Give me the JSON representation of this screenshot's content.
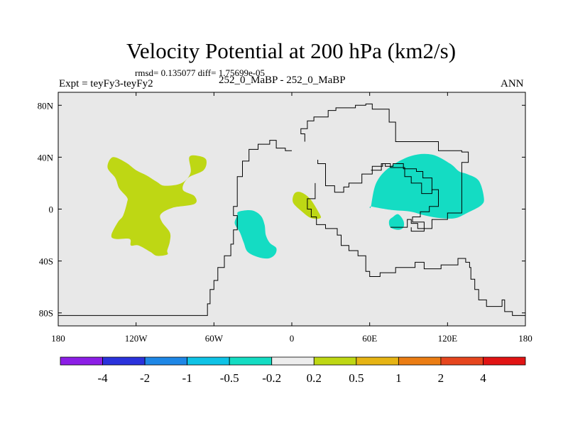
{
  "chart_data": {
    "type": "heatmap",
    "title": "Velocity Potential at 200 hPa (km2/s)",
    "subtitle_stats": "rmsd= 0.135077  diff= 1.75699e-05",
    "left_label": "Expt = teyFy3-teyFy2",
    "center_label": "252_0_MaBP - 252_0_MaBP",
    "right_label": "ANN",
    "x": {
      "range": [
        -180,
        180
      ],
      "tick_values": [
        -180,
        -120,
        -60,
        0,
        60,
        120,
        180
      ],
      "tick_labels": [
        "180",
        "120W",
        "60W",
        "0",
        "60E",
        "120E",
        "180"
      ]
    },
    "y": {
      "range": [
        -90,
        90
      ],
      "tick_values": [
        80,
        40,
        0,
        -40,
        -80
      ],
      "tick_labels": [
        "80N",
        "40N",
        "0",
        "40S",
        "80S"
      ]
    },
    "colorbar": {
      "labels": [
        "-4",
        "-2",
        "-1",
        "-0.5",
        "-0.2",
        "0.2",
        "0.5",
        "1",
        "2",
        "4"
      ],
      "colors": [
        "#8c1ee6",
        "#2a32dc",
        "#1e87e6",
        "#0fc3e6",
        "#14dcc3",
        "#ededed",
        "#bed714",
        "#e6b414",
        "#eb7d14",
        "#e6461e",
        "#e11414"
      ]
    },
    "background_color": "#e8e8e8",
    "regions": [
      {
        "name": "positive-region-pacific",
        "class": "0.2 to 0.5",
        "color": "#bed714",
        "outline": [
          [
            -138,
            40
          ],
          [
            -128,
            36
          ],
          [
            -120,
            30
          ],
          [
            -112,
            26
          ],
          [
            -104,
            21
          ],
          [
            -98,
            18
          ],
          [
            -85,
            20
          ],
          [
            -78,
            28
          ],
          [
            -79,
            40
          ],
          [
            -72,
            41
          ],
          [
            -66,
            38
          ],
          [
            -68,
            30
          ],
          [
            -80,
            24
          ],
          [
            -84,
            15
          ],
          [
            -75,
            10
          ],
          [
            -75,
            4
          ],
          [
            -92,
            1
          ],
          [
            -101,
            -4
          ],
          [
            -100,
            -10
          ],
          [
            -94,
            -18
          ],
          [
            -94,
            -25
          ],
          [
            -96,
            -32
          ],
          [
            -96,
            -35
          ],
          [
            -104,
            -36
          ],
          [
            -109,
            -33
          ],
          [
            -118,
            -28
          ],
          [
            -124,
            -28
          ],
          [
            -125,
            -23
          ],
          [
            -136,
            -23
          ],
          [
            -139,
            -20
          ],
          [
            -134,
            -10
          ],
          [
            -130,
            -5
          ],
          [
            -127,
            5
          ],
          [
            -127,
            9
          ],
          [
            -133,
            16
          ],
          [
            -136,
            24
          ],
          [
            -142,
            32
          ]
        ]
      },
      {
        "name": "positive-region-africa",
        "class": "0.2 to 0.5",
        "color": "#bed714",
        "outline": [
          [
            2,
            12
          ],
          [
            7,
            13
          ],
          [
            14,
            8
          ],
          [
            21,
            -3
          ],
          [
            22,
            -7
          ],
          [
            15,
            -7
          ],
          [
            8,
            -2
          ],
          [
            1,
            5
          ]
        ]
      },
      {
        "name": "negative-region-south-america",
        "class": "-0.5 to -0.2",
        "color": "#14dcc3",
        "outline": [
          [
            -41,
            -2
          ],
          [
            -31,
            -1
          ],
          [
            -24,
            -5
          ],
          [
            -21,
            -12
          ],
          [
            -20,
            -20
          ],
          [
            -17,
            -26
          ],
          [
            -12,
            -30
          ],
          [
            -13,
            -35
          ],
          [
            -18,
            -38
          ],
          [
            -26,
            -37
          ],
          [
            -34,
            -33
          ],
          [
            -37,
            -26
          ],
          [
            -40,
            -18
          ],
          [
            -44,
            -11
          ],
          [
            -42,
            -5
          ]
        ]
      },
      {
        "name": "negative-region-asia",
        "class": "-0.5 to -0.2",
        "color": "#14dcc3",
        "outline": [
          [
            61,
            2
          ],
          [
            65,
            20
          ],
          [
            75,
            32
          ],
          [
            92,
            41
          ],
          [
            108,
            42
          ],
          [
            122,
            35
          ],
          [
            129,
            29
          ],
          [
            135,
            27
          ],
          [
            144,
            22
          ],
          [
            148,
            9
          ],
          [
            146,
            3
          ],
          [
            135,
            -3
          ],
          [
            126,
            -7
          ],
          [
            115,
            -7
          ],
          [
            103,
            -5
          ],
          [
            92,
            -2
          ],
          [
            80,
            -1
          ],
          [
            72,
            0
          ],
          [
            61,
            2
          ]
        ]
      },
      {
        "name": "negative-region-indian-ocean",
        "class": "-0.5 to -0.2",
        "color": "#14dcc3",
        "outline": [
          [
            78,
            -6
          ],
          [
            82,
            -4
          ],
          [
            86,
            -9
          ],
          [
            86,
            -14
          ],
          [
            82,
            -16
          ],
          [
            76,
            -14
          ],
          [
            75,
            -9
          ]
        ]
      }
    ],
    "coastlines": [
      [
        [
          -180,
          -82
        ],
        [
          -65,
          -82
        ],
        [
          -65,
          -73
        ],
        [
          -63,
          -73
        ],
        [
          -63,
          -62
        ],
        [
          -60,
          -62
        ],
        [
          -60,
          -55
        ],
        [
          -57,
          -55
        ],
        [
          -57,
          -45
        ],
        [
          -52,
          -45
        ],
        [
          -52,
          -36
        ],
        [
          -47,
          -36
        ],
        [
          -47,
          -27
        ],
        [
          -45,
          -27
        ],
        [
          -45,
          -16
        ],
        [
          -42,
          -16
        ],
        [
          -42,
          -5
        ],
        [
          -45,
          -5
        ],
        [
          -45,
          2
        ],
        [
          -42,
          2
        ],
        [
          -42,
          25
        ],
        [
          -38,
          25
        ],
        [
          -38,
          37
        ],
        [
          -33,
          37
        ],
        [
          -33,
          46
        ],
        [
          -26,
          46
        ],
        [
          -26,
          50
        ],
        [
          -17,
          50
        ],
        [
          -17,
          53
        ],
        [
          -12,
          53
        ],
        [
          -12,
          47
        ],
        [
          -5,
          47
        ],
        [
          -5,
          45
        ],
        [
          0,
          45
        ]
      ],
      [
        [
          10,
          52
        ],
        [
          10,
          58
        ],
        [
          7,
          58
        ],
        [
          7,
          62
        ],
        [
          12,
          62
        ],
        [
          12,
          68
        ],
        [
          17,
          68
        ],
        [
          17,
          71
        ],
        [
          28,
          71
        ],
        [
          28,
          76
        ],
        [
          34,
          76
        ],
        [
          34,
          78
        ],
        [
          49,
          78
        ],
        [
          49,
          80
        ],
        [
          57,
          80
        ],
        [
          57,
          81
        ],
        [
          62,
          81
        ],
        [
          62,
          77
        ],
        [
          75,
          77
        ],
        [
          75,
          67
        ],
        [
          80,
          67
        ],
        [
          80,
          52
        ],
        [
          113,
          52
        ],
        [
          113,
          45
        ],
        [
          131,
          45
        ],
        [
          131,
          44
        ],
        [
          136,
          44
        ],
        [
          136,
          36
        ],
        [
          131,
          36
        ],
        [
          131,
          -3
        ],
        [
          120,
          -3
        ],
        [
          120,
          -8
        ],
        [
          108,
          -8
        ],
        [
          108,
          -15
        ],
        [
          97,
          -15
        ],
        [
          97,
          -11
        ],
        [
          92,
          -11
        ],
        [
          92,
          -8
        ],
        [
          89,
          -8
        ],
        [
          89,
          -14
        ],
        [
          76,
          -14
        ]
      ],
      [
        [
          20,
          38
        ],
        [
          20,
          35
        ],
        [
          26,
          35
        ],
        [
          26,
          18
        ],
        [
          33,
          18
        ],
        [
          33,
          13
        ],
        [
          40,
          13
        ],
        [
          40,
          17
        ],
        [
          44,
          17
        ],
        [
          44,
          20
        ],
        [
          54,
          20
        ],
        [
          54,
          27
        ],
        [
          62,
          27
        ],
        [
          62,
          33
        ],
        [
          70,
          33
        ],
        [
          70,
          35
        ],
        [
          76,
          35
        ],
        [
          76,
          32
        ],
        [
          87,
          32
        ],
        [
          87,
          25
        ],
        [
          92,
          25
        ],
        [
          92,
          20
        ],
        [
          100,
          20
        ],
        [
          100,
          12
        ],
        [
          108,
          12
        ],
        [
          108,
          15
        ],
        [
          113,
          15
        ],
        [
          113,
          2
        ],
        [
          106,
          2
        ],
        [
          106,
          -2
        ],
        [
          99,
          -2
        ],
        [
          99,
          -6
        ],
        [
          93,
          -6
        ],
        [
          93,
          -10
        ],
        [
          102,
          -10
        ],
        [
          102,
          -17
        ],
        [
          92,
          -17
        ],
        [
          92,
          -14
        ]
      ],
      [
        [
          18,
          20
        ],
        [
          18,
          8
        ],
        [
          12,
          8
        ],
        [
          12,
          0
        ],
        [
          15,
          0
        ],
        [
          15,
          -6
        ],
        [
          19,
          -6
        ],
        [
          19,
          -12
        ],
        [
          26,
          -12
        ],
        [
          26,
          -15
        ],
        [
          35,
          -15
        ],
        [
          35,
          -20
        ],
        [
          38,
          -20
        ],
        [
          38,
          -28
        ],
        [
          44,
          -28
        ],
        [
          44,
          -32
        ],
        [
          51,
          -32
        ],
        [
          51,
          -36
        ],
        [
          57,
          -36
        ],
        [
          57,
          -48
        ],
        [
          60,
          -48
        ],
        [
          60,
          -52
        ],
        [
          68,
          -52
        ],
        [
          68,
          -49
        ],
        [
          80,
          -49
        ],
        [
          80,
          -45
        ],
        [
          95,
          -45
        ],
        [
          95,
          -41
        ],
        [
          102,
          -41
        ],
        [
          102,
          -46
        ],
        [
          115,
          -46
        ],
        [
          115,
          -43
        ],
        [
          128,
          -43
        ],
        [
          128,
          -38
        ],
        [
          134,
          -38
        ],
        [
          134,
          -41
        ],
        [
          137,
          -41
        ],
        [
          137,
          -45
        ],
        [
          138,
          -45
        ],
        [
          138,
          -54
        ],
        [
          141,
          -54
        ],
        [
          141,
          -62
        ],
        [
          144,
          -62
        ],
        [
          144,
          -70
        ],
        [
          150,
          -70
        ],
        [
          150,
          -75
        ],
        [
          162,
          -75
        ],
        [
          162,
          -70
        ],
        [
          164,
          -70
        ],
        [
          164,
          -79
        ],
        [
          170,
          -79
        ],
        [
          170,
          -82
        ],
        [
          180,
          -82
        ]
      ],
      [
        [
          61,
          30
        ],
        [
          69,
          30
        ],
        [
          69,
          35
        ],
        [
          72,
          35
        ],
        [
          72,
          33
        ],
        [
          78,
          33
        ],
        [
          78,
          35
        ],
        [
          86,
          35
        ],
        [
          86,
          31
        ],
        [
          96,
          31
        ],
        [
          96,
          29
        ],
        [
          101,
          29
        ],
        [
          101,
          24
        ],
        [
          108,
          24
        ],
        [
          108,
          14
        ]
      ]
    ]
  }
}
